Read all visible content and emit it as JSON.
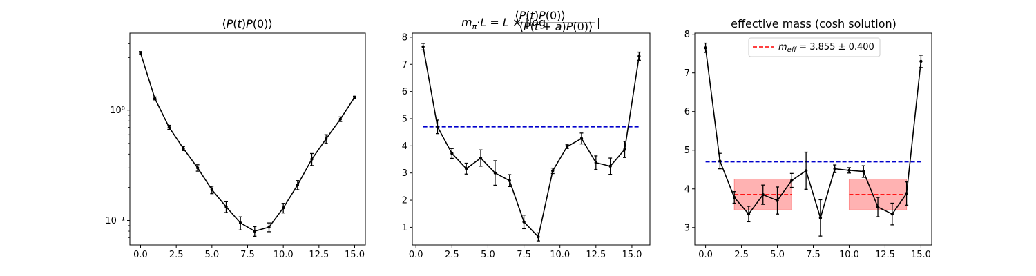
{
  "chart_data": [
    {
      "type": "line",
      "title": "⟨P(t)P(0)⟩",
      "xlabel": "",
      "ylabel": "",
      "yscale": "log",
      "xlim": [
        -0.75,
        15.75
      ],
      "ylim": [
        0.06,
        5.0
      ],
      "x_ticks": [
        "0.0",
        "2.5",
        "5.0",
        "7.5",
        "10.0",
        "12.5",
        "15.0"
      ],
      "x_tick_values": [
        0,
        2.5,
        5,
        7.5,
        10,
        12.5,
        15
      ],
      "y_ticks": [
        "10⁰",
        "10⁻¹"
      ],
      "y_tick_values": [
        1,
        0.1
      ],
      "series": [
        {
          "color": "#000000",
          "x": [
            0,
            1,
            2,
            3,
            4,
            5,
            6,
            7,
            8,
            9,
            10,
            11,
            12,
            13,
            14,
            15
          ],
          "y": [
            3.3,
            1.28,
            0.7,
            0.45,
            0.3,
            0.19,
            0.133,
            0.095,
            0.08,
            0.087,
            0.13,
            0.21,
            0.36,
            0.55,
            0.83,
            1.31
          ],
          "err": [
            0.1,
            0.04,
            0.03,
            0.02,
            0.02,
            0.015,
            0.015,
            0.013,
            0.008,
            0.008,
            0.013,
            0.02,
            0.045,
            0.05,
            0.04,
            0.03
          ]
        }
      ],
      "reference_lines": [],
      "bands": [],
      "legend": null
    },
    {
      "type": "line",
      "title": "m_π·L = L × |log ⟨P(t)P(0)⟩ / ⟨P(t+a)P(0)⟩|",
      "xlabel": "",
      "ylabel": "",
      "yscale": "linear",
      "xlim": [
        -0.25,
        16.25
      ],
      "ylim": [
        0.35,
        8.15
      ],
      "x_ticks": [
        "0.0",
        "2.5",
        "5.0",
        "7.5",
        "10.0",
        "12.5",
        "15.0"
      ],
      "x_tick_values": [
        0,
        2.5,
        5,
        7.5,
        10,
        12.5,
        15
      ],
      "y_ticks": [
        "1",
        "2",
        "3",
        "4",
        "5",
        "6",
        "7",
        "8"
      ],
      "y_tick_values": [
        1,
        2,
        3,
        4,
        5,
        6,
        7,
        8
      ],
      "series": [
        {
          "color": "#000000",
          "x": [
            0.5,
            1.5,
            2.5,
            3.5,
            4.5,
            5.5,
            6.5,
            7.5,
            8.5,
            9.5,
            10.5,
            11.5,
            12.5,
            13.5,
            14.5,
            15.5
          ],
          "y": [
            7.65,
            4.7,
            3.72,
            3.16,
            3.55,
            3.0,
            2.72,
            1.2,
            0.65,
            3.08,
            3.97,
            4.27,
            3.38,
            3.25,
            3.87,
            7.3
          ],
          "err": [
            0.12,
            0.25,
            0.18,
            0.2,
            0.3,
            0.45,
            0.22,
            0.25,
            0.15,
            0.1,
            0.07,
            0.2,
            0.25,
            0.3,
            0.3,
            0.15
          ]
        }
      ],
      "reference_lines": [
        {
          "y": 4.7,
          "x_from": 0.5,
          "x_to": 15.5,
          "color": "#0000cc",
          "style": "dashed"
        }
      ],
      "bands": [],
      "legend": null
    },
    {
      "type": "line",
      "title": "effective mass (cosh solution)",
      "xlabel": "",
      "ylabel": "",
      "yscale": "linear",
      "xlim": [
        -0.75,
        15.75
      ],
      "ylim": [
        2.55,
        8.03
      ],
      "x_ticks": [
        "0.0",
        "2.5",
        "5.0",
        "7.5",
        "10.0",
        "12.5",
        "15.0"
      ],
      "x_tick_values": [
        0,
        2.5,
        5,
        7.5,
        10,
        12.5,
        15
      ],
      "y_ticks": [
        "3",
        "4",
        "5",
        "6",
        "7",
        "8"
      ],
      "y_tick_values": [
        3,
        4,
        5,
        6,
        7,
        8
      ],
      "series": [
        {
          "color": "#000000",
          "x": [
            0,
            1,
            2,
            3,
            4,
            5,
            6,
            7,
            8,
            9,
            10,
            11,
            12,
            13,
            14,
            15
          ],
          "y": [
            7.65,
            4.72,
            3.78,
            3.35,
            3.85,
            3.7,
            4.22,
            4.47,
            3.25,
            4.52,
            4.48,
            4.45,
            3.53,
            3.35,
            3.88,
            7.3
          ],
          "err": [
            0.12,
            0.2,
            0.15,
            0.2,
            0.25,
            0.35,
            0.18,
            0.48,
            0.47,
            0.1,
            0.07,
            0.15,
            0.25,
            0.28,
            0.3,
            0.16
          ]
        }
      ],
      "reference_lines": [
        {
          "y": 4.7,
          "x_from": 0,
          "x_to": 15,
          "color": "#0000cc",
          "style": "dashed"
        },
        {
          "y": 3.855,
          "x_from": 2,
          "x_to": 6,
          "color": "#ff0000",
          "style": "dashed"
        },
        {
          "y": 3.855,
          "x_from": 10,
          "x_to": 14,
          "color": "#ff0000",
          "style": "dashed"
        }
      ],
      "bands": [
        {
          "x_from": 2,
          "x_to": 6,
          "y_from": 3.455,
          "y_to": 4.255,
          "color": "#ff0000",
          "opacity": 0.3
        },
        {
          "x_from": 10,
          "x_to": 14,
          "y_from": 3.455,
          "y_to": 4.255,
          "color": "#ff0000",
          "opacity": 0.3
        }
      ],
      "legend": {
        "placement": "top-center",
        "entries": [
          {
            "label": "m_eff = 3.855 ± 0.400",
            "color": "#ff0000",
            "style": "dashed"
          }
        ]
      }
    }
  ]
}
